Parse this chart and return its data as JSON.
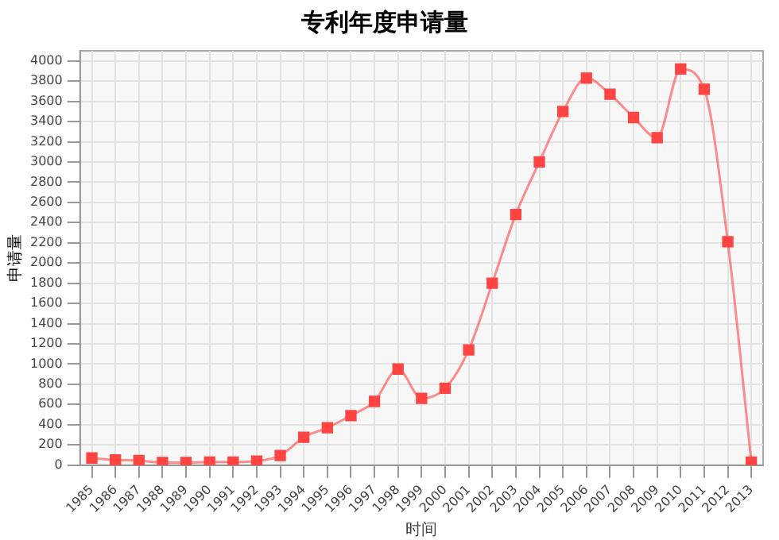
{
  "chart_data": {
    "type": "line",
    "title": "专利年度申请量",
    "xlabel": "时间",
    "ylabel": "申请量",
    "categories": [
      "1985",
      "1986",
      "1987",
      "1988",
      "1989",
      "1990",
      "1991",
      "1992",
      "1993",
      "1994",
      "1995",
      "1996",
      "1997",
      "1998",
      "1999",
      "2000",
      "2001",
      "2002",
      "2003",
      "2004",
      "2005",
      "2006",
      "2007",
      "2008",
      "2009",
      "2010",
      "2011",
      "2012",
      "2013"
    ],
    "series": [
      {
        "color": "#ff4444",
        "values": [
          70,
          50,
          45,
          25,
          25,
          30,
          30,
          40,
          95,
          275,
          370,
          490,
          630,
          950,
          660,
          760,
          1140,
          1800,
          2480,
          3000,
          3500,
          3830,
          3670,
          3440,
          3240,
          3920,
          3720,
          2210,
          30
        ]
      }
    ],
    "ylim": [
      0,
      4100
    ],
    "yticks": [
      0,
      200,
      400,
      600,
      800,
      1000,
      1200,
      1400,
      1600,
      1800,
      2000,
      2200,
      2400,
      2600,
      2800,
      3000,
      3200,
      3400,
      3600,
      3800,
      4000
    ],
    "grid": true,
    "legend": false,
    "marker": "square",
    "line_style": "solid"
  }
}
